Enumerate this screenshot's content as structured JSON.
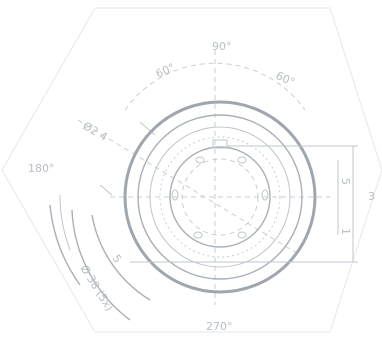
{
  "labels": {
    "top": "90°",
    "top_left": "60°",
    "top_right": "60°",
    "left_upper": "Ø2 4",
    "left": "180°",
    "bottom": "270°",
    "right": "3",
    "arc_small": "5",
    "arc_outer": "Ø 38 (5x)",
    "right_dim_a": "5",
    "right_dim_b": "1"
  }
}
